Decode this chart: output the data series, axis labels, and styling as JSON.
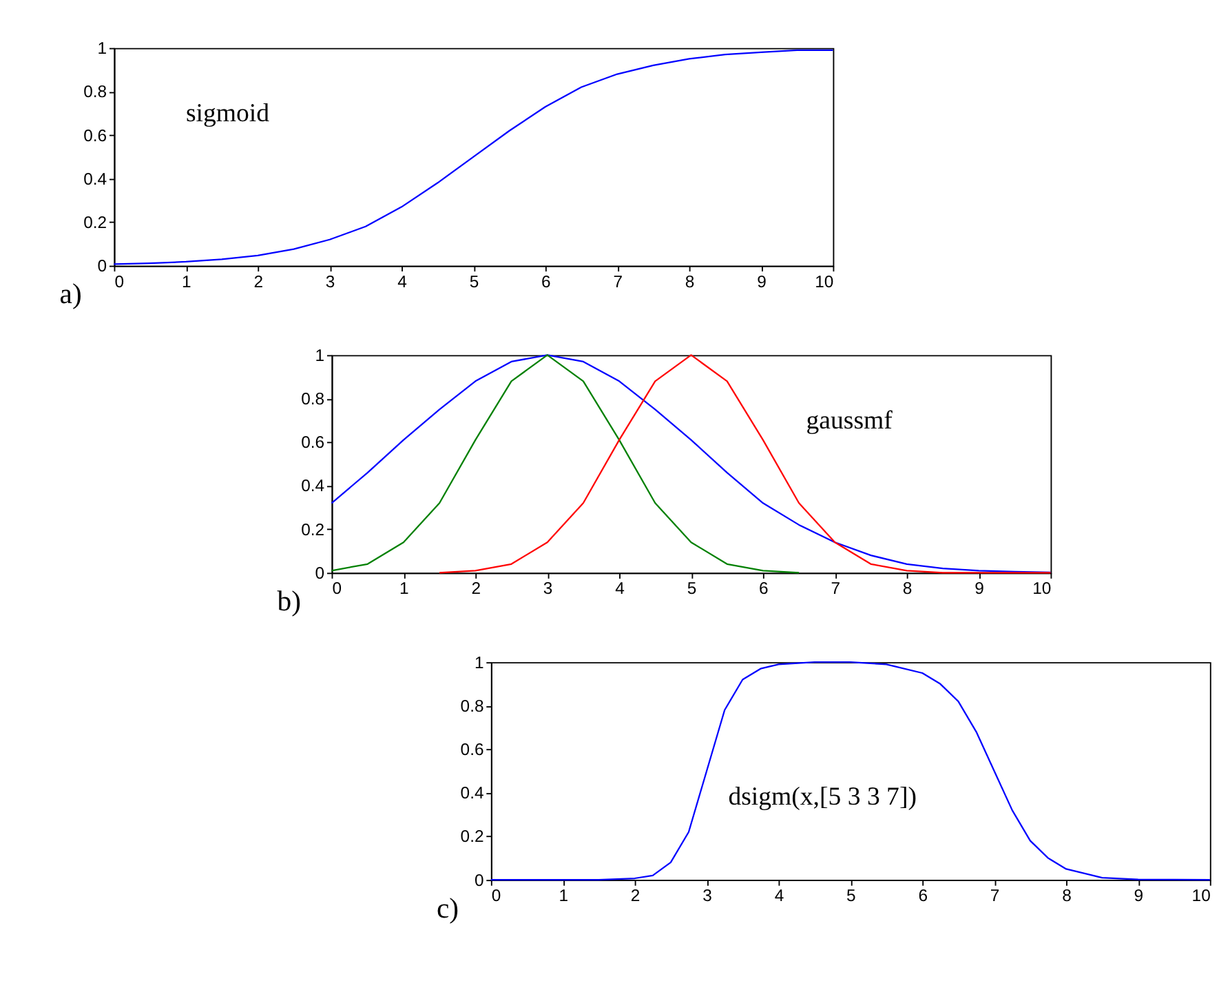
{
  "chart_data": [
    {
      "type": "line",
      "annotations": [
        "sigmoid",
        "a)"
      ],
      "x": [
        0,
        0.5,
        1,
        1.5,
        2,
        2.5,
        3,
        3.5,
        4,
        4.5,
        5,
        5.5,
        6,
        6.5,
        7,
        7.5,
        8,
        8.5,
        9,
        9.5,
        10
      ],
      "xlim": [
        0,
        10
      ],
      "ylim": [
        0,
        1
      ],
      "xticks": [
        0,
        1,
        2,
        3,
        4,
        5,
        6,
        7,
        8,
        9,
        10
      ],
      "yticks": [
        0,
        0.2,
        0.4,
        0.6,
        0.8,
        1
      ],
      "grid": false,
      "legend": false,
      "series": [
        {
          "color": "#0000ff",
          "values": [
            0.007,
            0.011,
            0.018,
            0.029,
            0.047,
            0.076,
            0.12,
            0.18,
            0.27,
            0.38,
            0.5,
            0.62,
            0.73,
            0.82,
            0.88,
            0.92,
            0.95,
            0.97,
            0.98,
            0.99,
            0.99
          ]
        }
      ]
    },
    {
      "type": "line",
      "annotations": [
        "gaussmf",
        "b)"
      ],
      "x": [
        0,
        0.5,
        1,
        1.5,
        2,
        2.5,
        3,
        3.5,
        4,
        4.5,
        5,
        5.5,
        6,
        6.5,
        7,
        7.5,
        8,
        8.5,
        9,
        9.5,
        10
      ],
      "xlim": [
        0,
        10
      ],
      "ylim": [
        0,
        1
      ],
      "xticks": [
        0,
        1,
        2,
        3,
        4,
        5,
        6,
        7,
        8,
        9,
        10
      ],
      "yticks": [
        0,
        0.2,
        0.4,
        0.6,
        0.8,
        1
      ],
      "grid": false,
      "legend": false,
      "series": [
        {
          "color": "#0000ff",
          "values": [
            0.32,
            0.46,
            0.61,
            0.75,
            0.88,
            0.97,
            1,
            0.97,
            0.88,
            0.75,
            0.61,
            0.46,
            0.32,
            0.22,
            0.14,
            0.08,
            0.04,
            0.02,
            0.01,
            0.005,
            0.002
          ]
        },
        {
          "color": "#008000",
          "values": [
            0.01,
            0.04,
            0.14,
            0.32,
            0.61,
            0.88,
            1,
            0.88,
            0.61,
            0.32,
            0.14,
            0.04,
            0.01,
            0,
            null,
            null,
            null,
            null,
            null,
            null,
            null
          ]
        },
        {
          "color": "#ff0000",
          "values": [
            null,
            null,
            null,
            0,
            0.01,
            0.04,
            0.14,
            0.32,
            0.61,
            0.88,
            1,
            0.88,
            0.61,
            0.32,
            0.14,
            0.04,
            0.01,
            0,
            0,
            0,
            0
          ]
        }
      ]
    },
    {
      "type": "line",
      "annotations": [
        "dsigm(x,[5 3 3 7])",
        "c)"
      ],
      "x": [
        0,
        1,
        1.5,
        2,
        2.25,
        2.5,
        2.75,
        3,
        3.25,
        3.5,
        3.75,
        4,
        4.5,
        5,
        5.5,
        6,
        6.25,
        6.5,
        6.75,
        7,
        7.25,
        7.5,
        7.75,
        8,
        8.5,
        9,
        10
      ],
      "xlim": [
        0,
        10
      ],
      "ylim": [
        0,
        1
      ],
      "xticks": [
        0,
        1,
        2,
        3,
        4,
        5,
        6,
        7,
        8,
        9,
        10
      ],
      "yticks": [
        0,
        0.2,
        0.4,
        0.6,
        0.8,
        1
      ],
      "grid": false,
      "legend": false,
      "series": [
        {
          "color": "#0000ff",
          "values": [
            0,
            0,
            0,
            0.007,
            0.02,
            0.08,
            0.22,
            0.5,
            0.78,
            0.92,
            0.97,
            0.99,
            1,
            1,
            0.99,
            0.95,
            0.9,
            0.82,
            0.68,
            0.5,
            0.32,
            0.18,
            0.1,
            0.05,
            0.01,
            0.002,
            0
          ]
        }
      ]
    }
  ]
}
